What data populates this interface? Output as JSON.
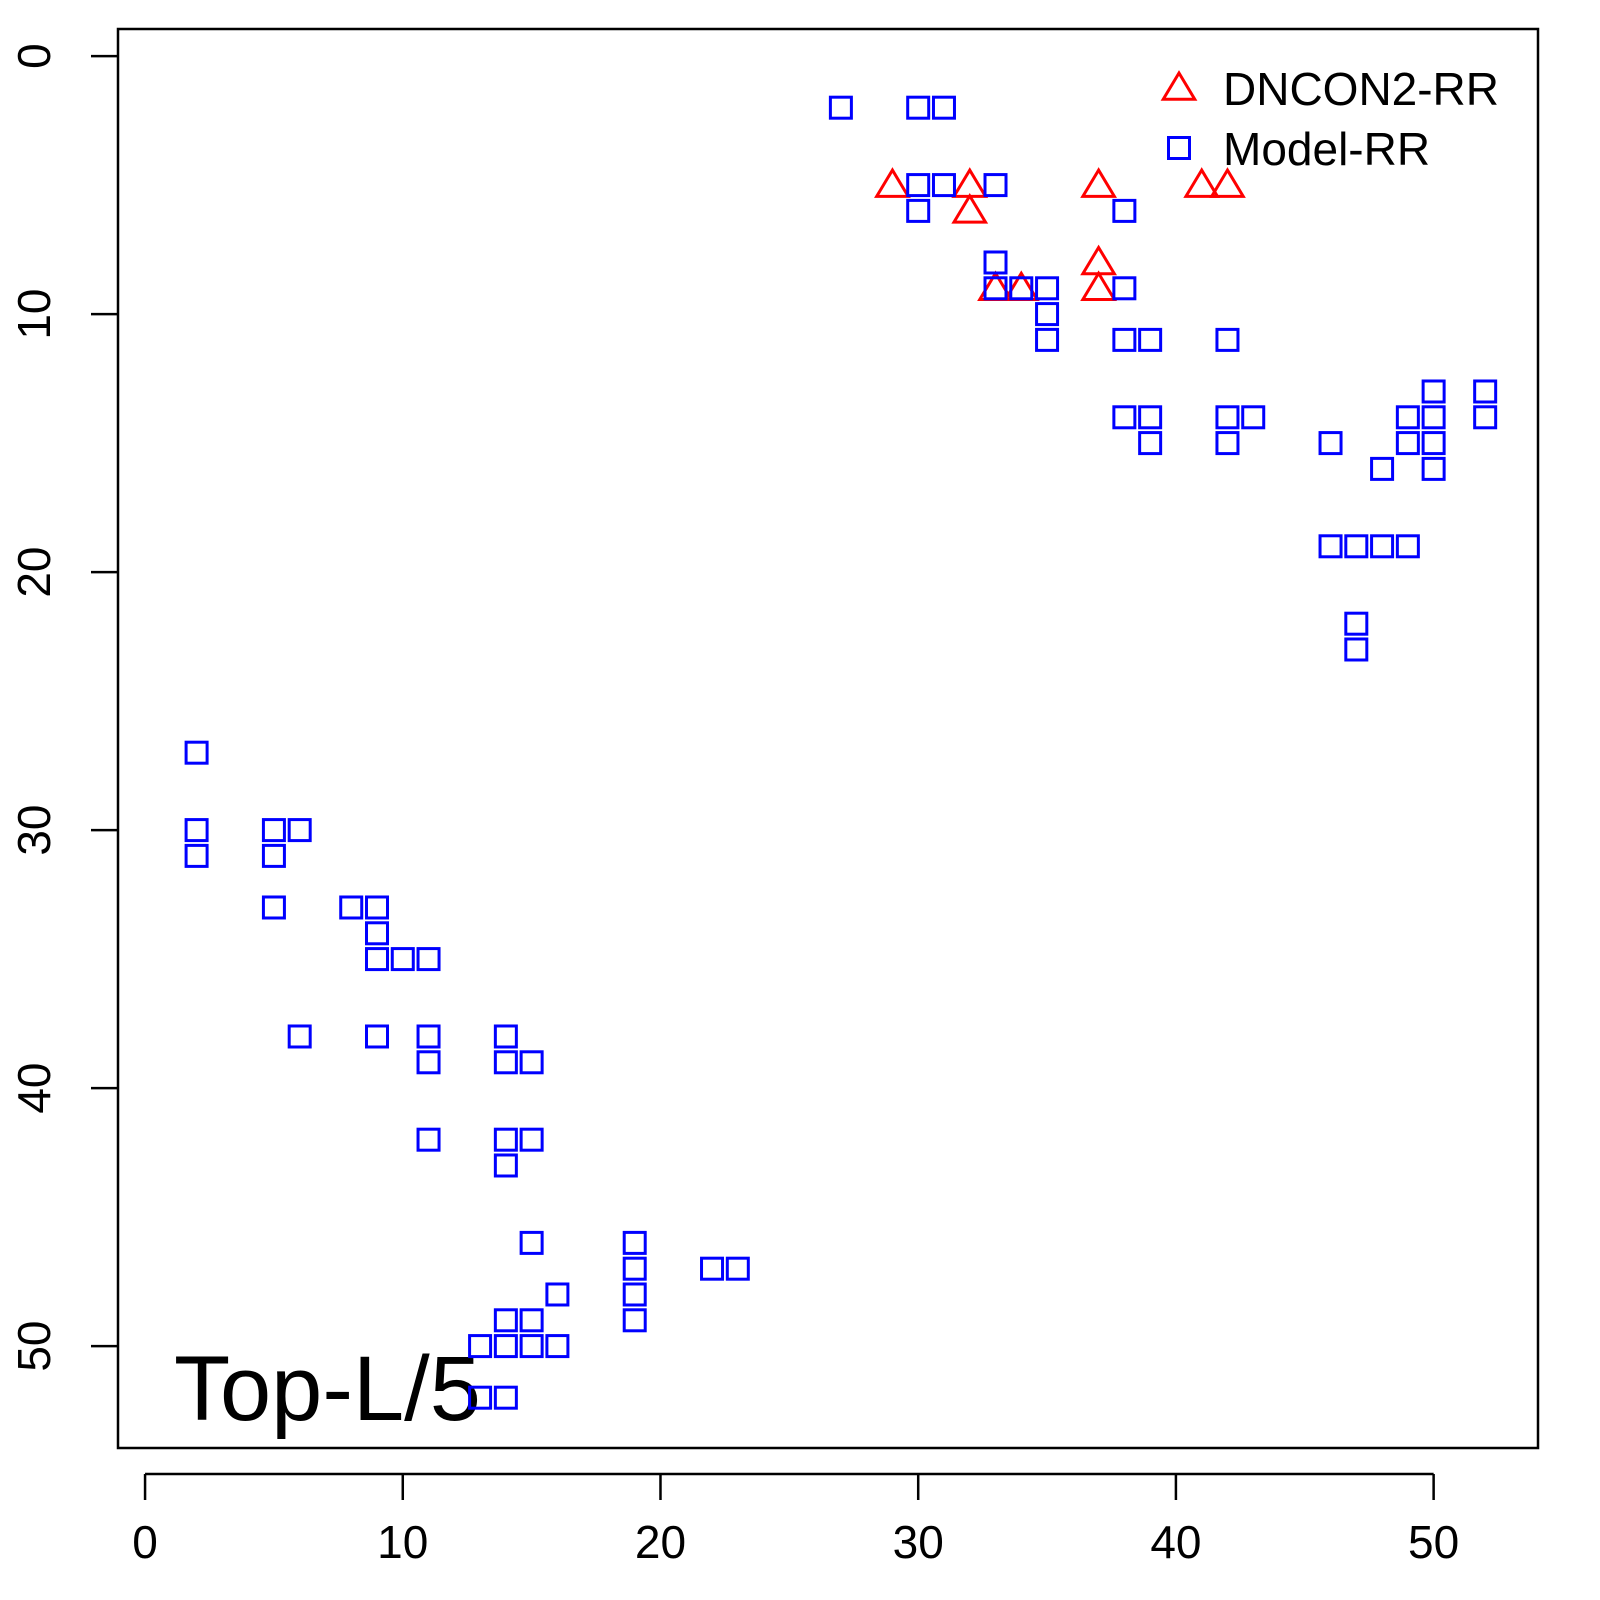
{
  "chart_data": {
    "type": "scatter",
    "annotation": "Top-L/5",
    "xlim": [
      -1.05,
      54.05
    ],
    "ylim": [
      -1.05,
      53.95
    ],
    "y_inverted": true,
    "xticks": [
      0,
      10,
      20,
      30,
      40,
      50
    ],
    "yticks": [
      0,
      10,
      20,
      30,
      40,
      50
    ],
    "grid": false,
    "legend": "topright",
    "series": [
      {
        "name": "DNCON2-RR",
        "color": "#ff0000",
        "marker": "triangle",
        "x": [
          29,
          32,
          32,
          33,
          34,
          37,
          37,
          37,
          41,
          42
        ],
        "y": [
          5,
          5,
          6,
          9,
          9,
          5,
          8,
          9,
          5,
          5
        ]
      },
      {
        "name": "Model-RR",
        "color": "#0000ff",
        "marker": "square",
        "x": [
          27,
          30,
          31,
          30,
          31,
          33,
          30,
          38,
          33,
          33,
          34,
          35,
          35,
          35,
          38,
          38,
          39,
          42,
          38,
          39,
          39,
          42,
          43,
          42,
          46,
          48,
          49,
          49,
          50,
          50,
          50,
          50,
          52,
          52,
          46,
          47,
          48,
          49,
          47,
          47,
          2,
          2,
          2,
          5,
          6,
          5,
          5,
          8,
          9,
          9,
          9,
          10,
          11,
          6,
          9,
          11,
          11,
          14,
          14,
          15,
          11,
          14,
          15,
          14,
          15,
          19,
          19,
          22,
          23,
          16,
          19,
          19,
          14,
          15,
          13,
          14,
          15,
          16,
          13,
          14
        ],
        "y": [
          2,
          2,
          2,
          5,
          5,
          5,
          6,
          6,
          8,
          9,
          9,
          9,
          10,
          11,
          9,
          11,
          11,
          11,
          14,
          14,
          15,
          14,
          14,
          15,
          15,
          16,
          14,
          15,
          13,
          14,
          15,
          16,
          13,
          14,
          19,
          19,
          19,
          19,
          22,
          23,
          27,
          30,
          31,
          30,
          30,
          31,
          33,
          33,
          33,
          34,
          35,
          35,
          35,
          38,
          38,
          38,
          39,
          38,
          39,
          39,
          42,
          42,
          42,
          43,
          46,
          46,
          47,
          47,
          47,
          48,
          48,
          49,
          49,
          49,
          50,
          50,
          50,
          50,
          52,
          52
        ]
      }
    ]
  }
}
